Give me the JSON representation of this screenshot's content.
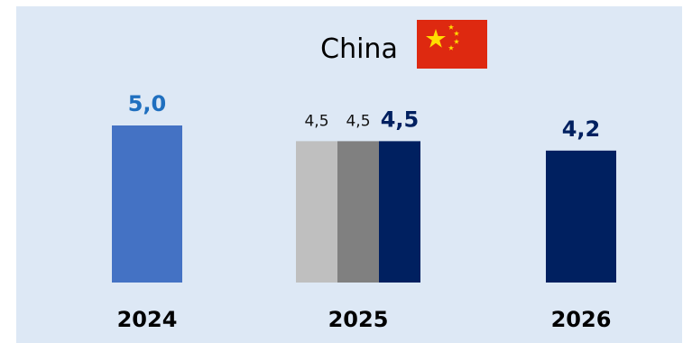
{
  "chart_data": {
    "type": "bar",
    "title": "China",
    "flag_icon": "china-flag-icon",
    "categories": [
      "2024",
      "2025",
      "2026"
    ],
    "ylim": [
      0,
      5.0
    ],
    "grid": false,
    "bars": [
      {
        "category": "2024",
        "value": 5.0,
        "label": "5,0",
        "color": "#4472c4",
        "label_color": "#1f6fbf",
        "label_style": "big"
      },
      {
        "category": "2025",
        "value": 4.5,
        "label": "4,5",
        "color": "#bfbfbf",
        "label_color": "#111111",
        "label_style": "small"
      },
      {
        "category": "2025",
        "value": 4.5,
        "label": "4,5",
        "color": "#808080",
        "label_color": "#111111",
        "label_style": "small"
      },
      {
        "category": "2025",
        "value": 4.5,
        "label": "4,5",
        "color": "#002060",
        "label_color": "#002060",
        "label_style": "big"
      },
      {
        "category": "2026",
        "value": 4.2,
        "label": "4,2",
        "color": "#002060",
        "label_color": "#002060",
        "label_style": "big"
      }
    ]
  }
}
